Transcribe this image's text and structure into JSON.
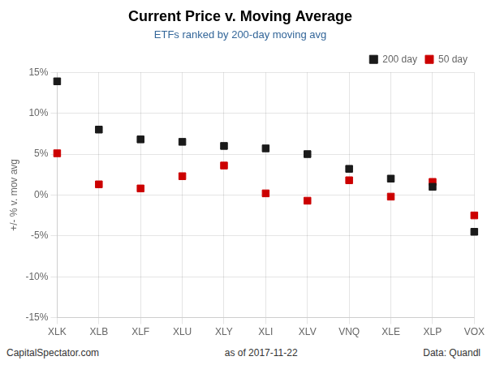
{
  "chart_data": {
    "type": "scatter",
    "title": "Current Price v. Moving Average",
    "subtitle": "ETFs ranked by 200-day moving avg",
    "ylabel": "+/- % v. mov avg",
    "annotations": [
      "CapitalSpectator.com",
      "as of  2017-11-22",
      "Data: Quandl"
    ],
    "categories": [
      "XLK",
      "XLB",
      "XLF",
      "XLU",
      "XLY",
      "XLI",
      "XLV",
      "VNQ",
      "XLE",
      "XLP",
      "VOX"
    ],
    "series": [
      {
        "name": "200 day",
        "color": "#1a1a1a",
        "marker": "square",
        "values": [
          13.9,
          8.0,
          6.8,
          6.5,
          6.0,
          5.7,
          5.0,
          3.2,
          2.0,
          1.0,
          -4.5
        ]
      },
      {
        "name": "50 day",
        "color": "#cc0000",
        "marker": "square",
        "values": [
          5.1,
          1.3,
          0.8,
          2.3,
          3.6,
          0.2,
          -0.7,
          1.8,
          -0.2,
          1.6,
          -2.5
        ]
      }
    ],
    "ylim": [
      -15,
      15
    ],
    "yticks": [
      {
        "value": -15,
        "label": "-15%"
      },
      {
        "value": -10,
        "label": "-10%"
      },
      {
        "value": -5,
        "label": "-5%"
      },
      {
        "value": 0,
        "label": "0%"
      },
      {
        "value": 5,
        "label": "5%"
      },
      {
        "value": 10,
        "label": "10%"
      },
      {
        "value": 15,
        "label": "15%"
      }
    ],
    "grid": true,
    "legend": "upper right"
  }
}
